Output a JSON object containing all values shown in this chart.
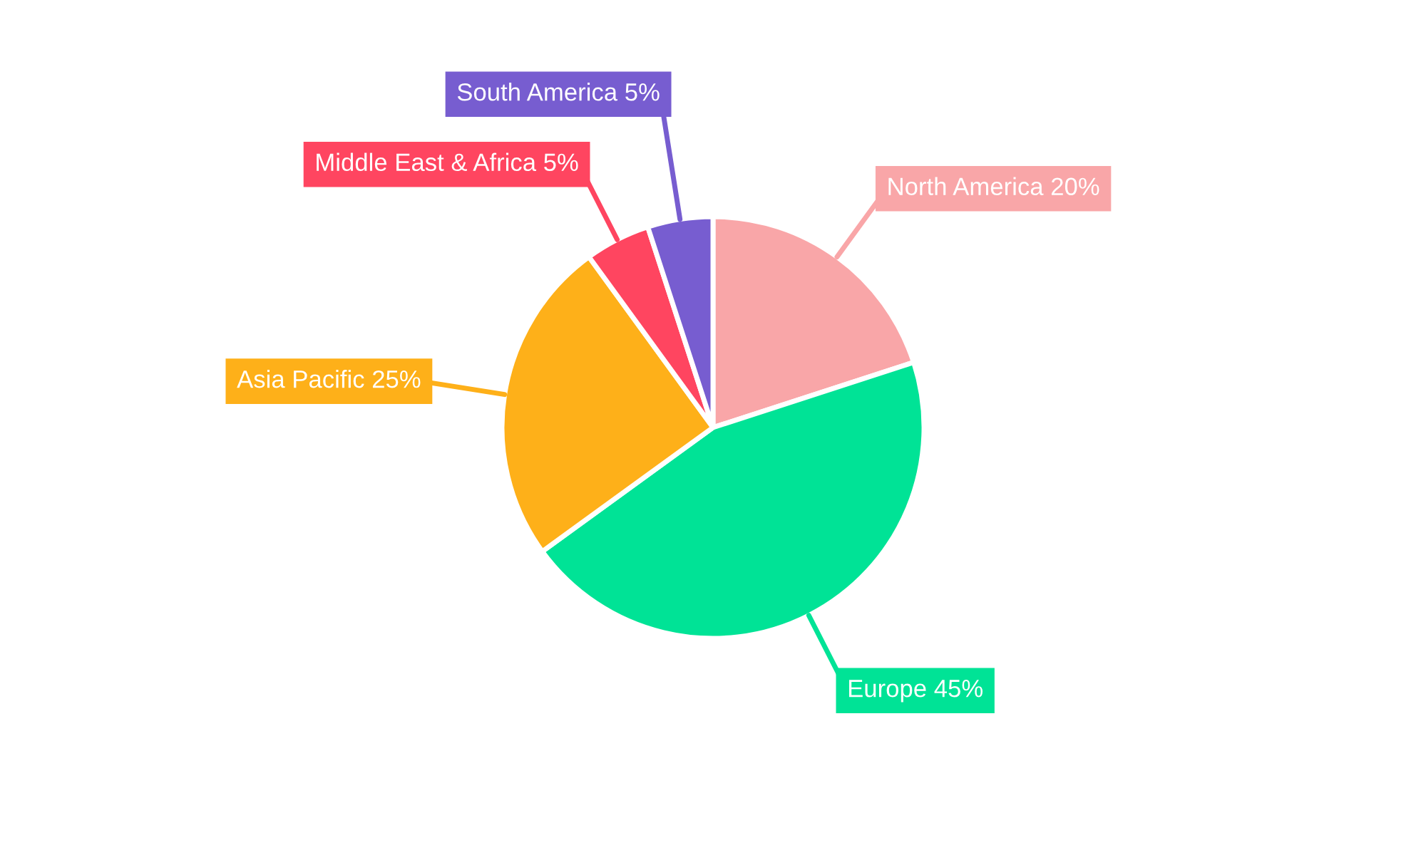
{
  "chart_data": {
    "type": "pie",
    "categories": [
      "North America",
      "Europe",
      "Asia Pacific",
      "Middle East & Africa",
      "South America"
    ],
    "values": [
      20,
      45,
      25,
      5,
      5
    ],
    "colors": [
      "#f9a6a8",
      "#00e396",
      "#feb019",
      "#ff4560",
      "#775dd0"
    ],
    "value_labels": [
      "20%",
      "45%",
      "25%",
      "5%",
      "5%"
    ]
  }
}
